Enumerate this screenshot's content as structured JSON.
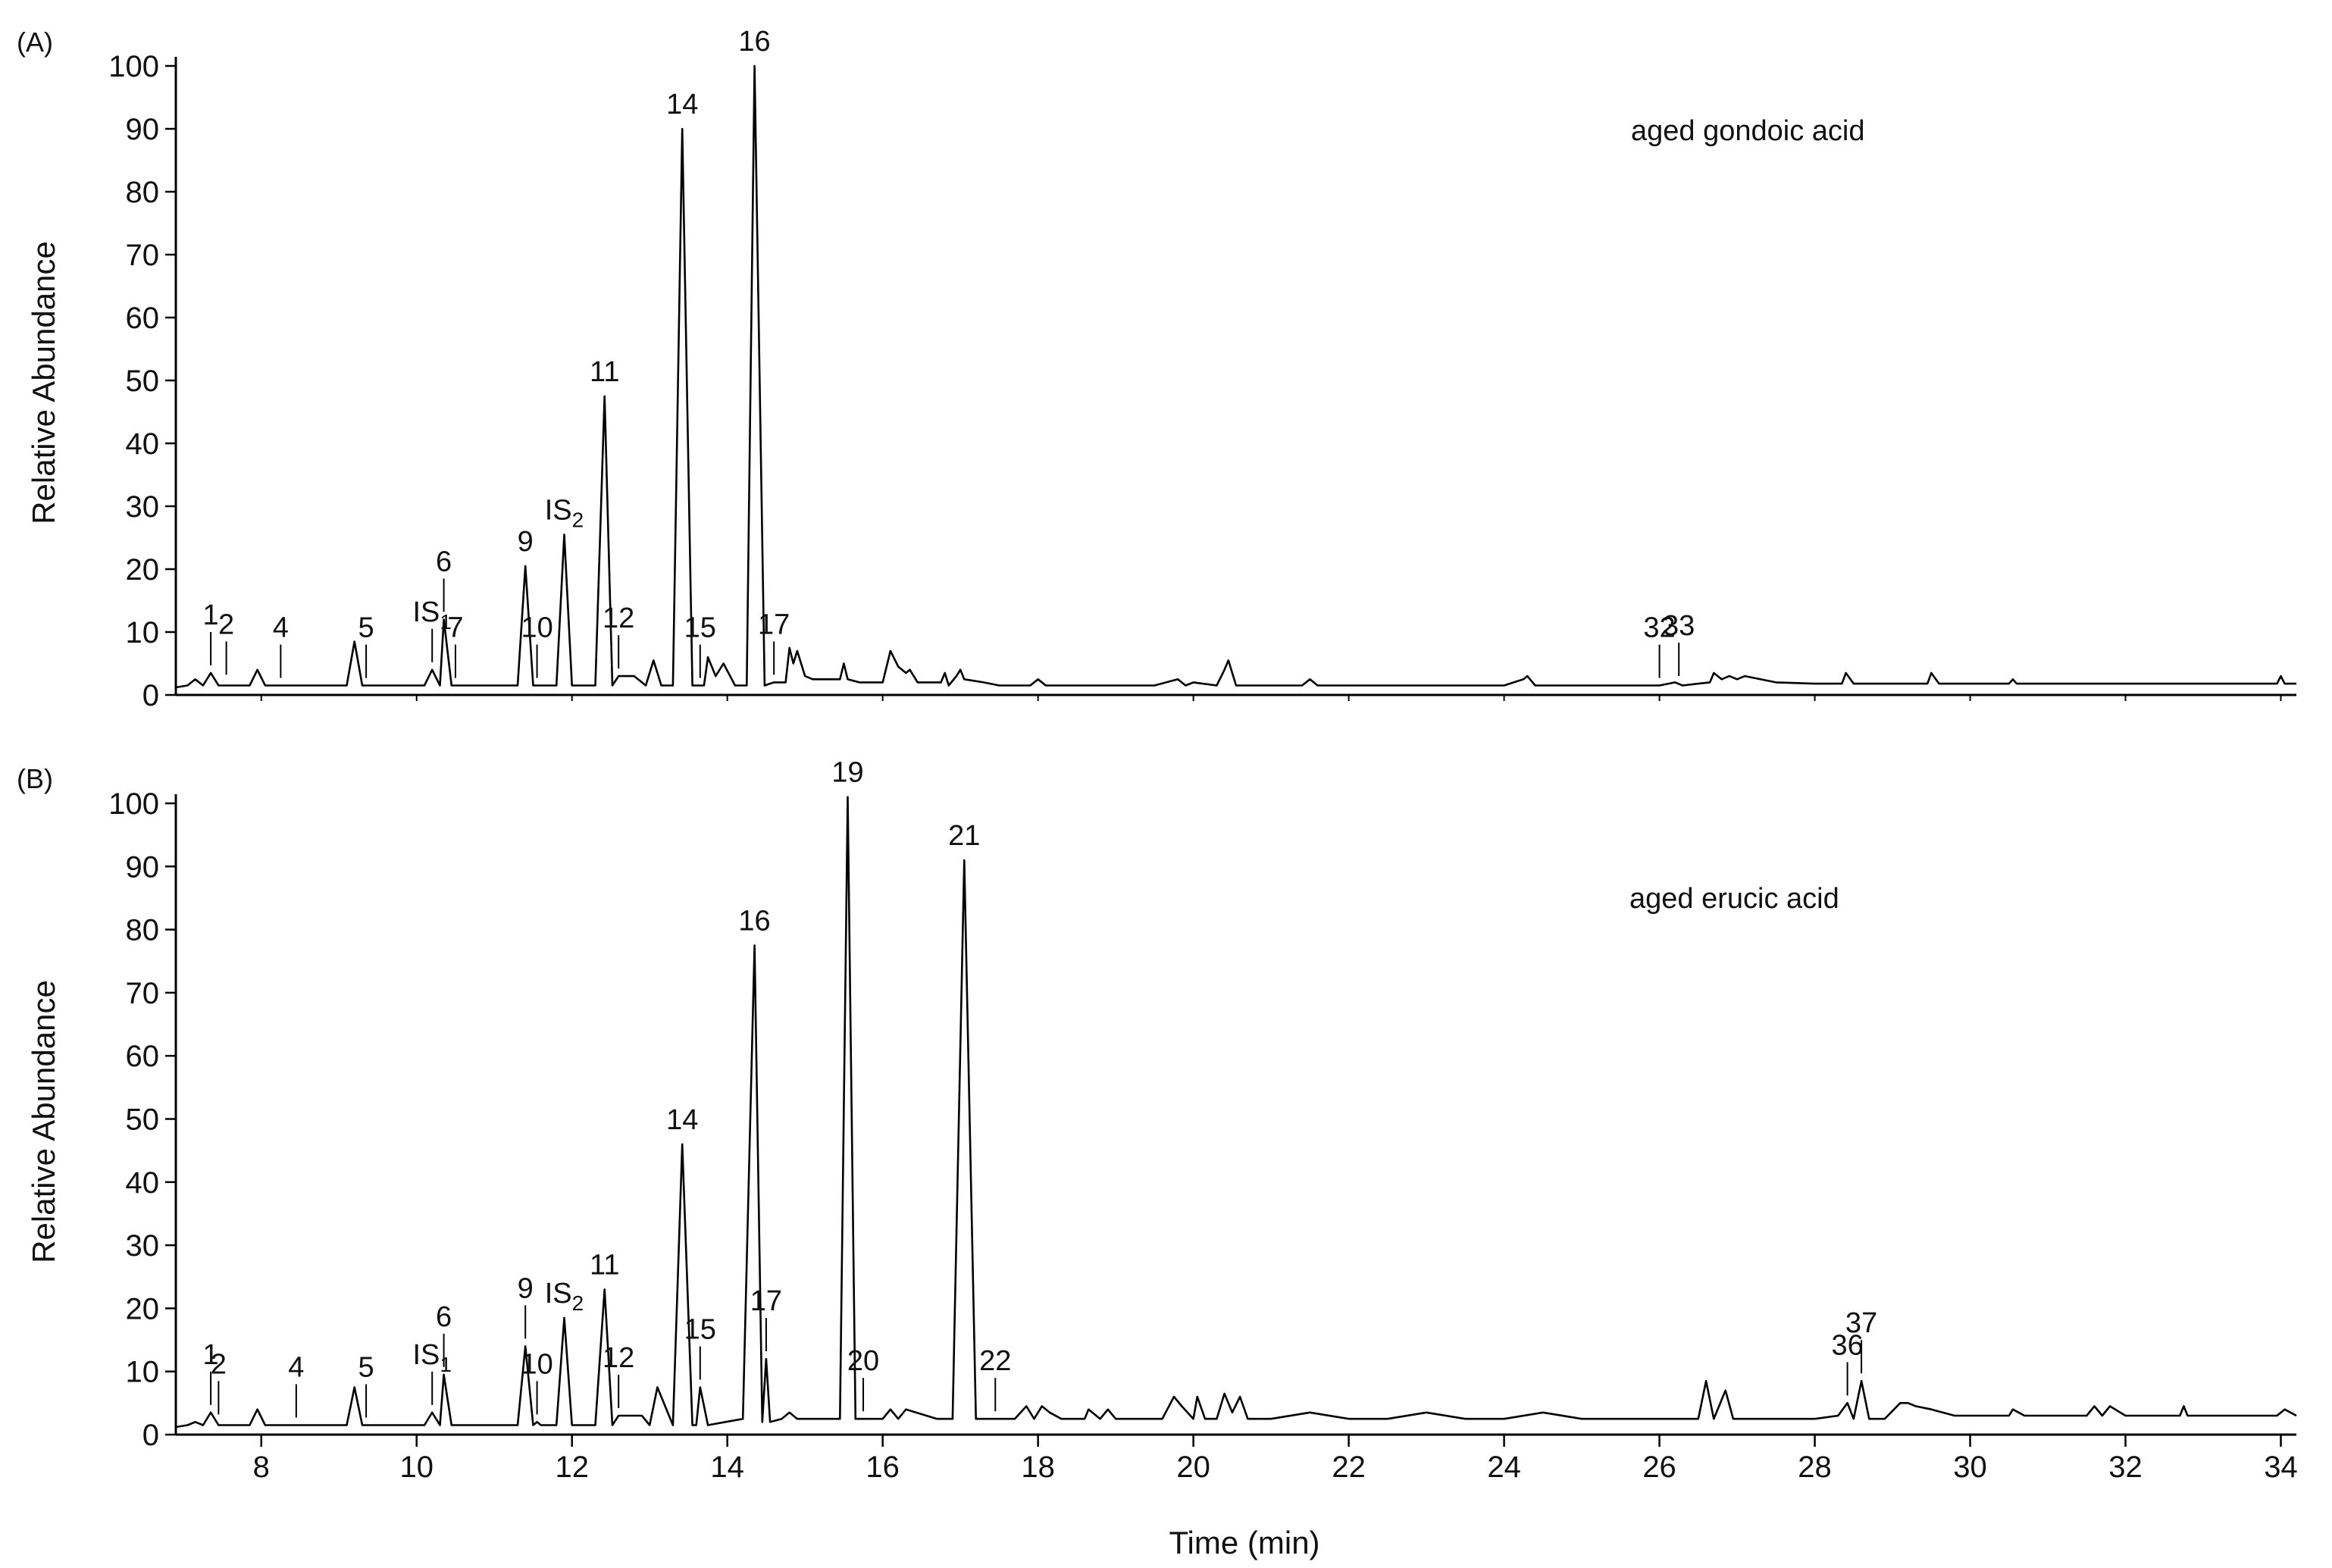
{
  "chart_data": [
    {
      "type": "line",
      "panel_label": "(A)",
      "title": "",
      "annotation": "aged gondoic acid",
      "xlabel": "",
      "ylabel": "Relative Abundance",
      "xlim": [
        6.9,
        34.2
      ],
      "ylim": [
        0,
        100
      ],
      "yticks": [
        0,
        10,
        20,
        30,
        40,
        50,
        60,
        70,
        80,
        90,
        100
      ],
      "xticks": [],
      "grid": false,
      "legend": "none",
      "color": "#000000",
      "series": [
        {
          "x": [
            6.9,
            7.05,
            7.15,
            7.25,
            7.35,
            7.45,
            7.85,
            7.95,
            8.05,
            8.5,
            9.1,
            9.2,
            9.3,
            10.1,
            10.2,
            10.3,
            10.35,
            10.45,
            10.6,
            10.9,
            11.3,
            11.4,
            11.5,
            11.8,
            11.9,
            12.0,
            12.3,
            12.42,
            12.52,
            12.6,
            12.8,
            12.95,
            13.05,
            13.15,
            13.3,
            13.42,
            13.55,
            13.7,
            13.75,
            13.85,
            13.95,
            14.1,
            14.25,
            14.35,
            14.48,
            14.6,
            14.75,
            14.8,
            14.85,
            14.9,
            15.0,
            15.1,
            15.45,
            15.5,
            15.55,
            15.7,
            16.0,
            16.1,
            16.2,
            16.3,
            16.35,
            16.45,
            16.75,
            16.8,
            16.85,
            16.95,
            17.0,
            17.05,
            17.3,
            17.5,
            17.9,
            18.0,
            18.1,
            18.3,
            19.5,
            19.8,
            19.9,
            20.0,
            20.3,
            20.4,
            20.45,
            20.55,
            21.0,
            21.4,
            21.5,
            21.6,
            22.0,
            22.6,
            23.0,
            23.5,
            24.0,
            24.25,
            24.3,
            24.4,
            25.0,
            25.5,
            26.0,
            26.2,
            26.3,
            26.5,
            26.65,
            26.7,
            26.8,
            26.9,
            27.0,
            27.1,
            27.5,
            28.0,
            28.35,
            28.4,
            28.5,
            29.0,
            29.45,
            29.5,
            29.6,
            30.0,
            30.5,
            30.55,
            30.6,
            31.0,
            31.5,
            32.0,
            32.5,
            33.0,
            33.5,
            33.95,
            34.0,
            34.05,
            34.2
          ],
          "y": [
            1.2,
            1.5,
            2.5,
            1.5,
            3.5,
            1.5,
            1.5,
            4.0,
            1.5,
            1.5,
            1.5,
            8.5,
            1.5,
            1.5,
            4.0,
            1.5,
            12.0,
            1.5,
            1.5,
            1.5,
            1.5,
            20.5,
            1.5,
            1.5,
            25.5,
            1.5,
            1.5,
            47.5,
            1.5,
            3.0,
            3.0,
            1.5,
            5.5,
            1.5,
            1.5,
            90.0,
            1.5,
            1.5,
            6.0,
            3.0,
            5.0,
            1.5,
            1.5,
            100.0,
            1.5,
            2.0,
            2.0,
            7.5,
            5.0,
            7.0,
            3.0,
            2.5,
            2.5,
            5.0,
            2.5,
            2.0,
            2.0,
            7.0,
            4.5,
            3.5,
            4.0,
            2.0,
            2.0,
            3.5,
            1.5,
            3.0,
            4.0,
            2.5,
            2.0,
            1.5,
            1.5,
            2.5,
            1.5,
            1.5,
            1.5,
            2.5,
            1.5,
            2.0,
            1.5,
            4.0,
            5.5,
            1.5,
            1.5,
            1.5,
            2.5,
            1.5,
            1.5,
            1.5,
            1.5,
            1.5,
            1.5,
            2.5,
            3.0,
            1.5,
            1.5,
            1.5,
            1.5,
            2.0,
            1.5,
            1.8,
            2.0,
            3.5,
            2.5,
            3.0,
            2.5,
            3.0,
            2.0,
            1.8,
            1.8,
            3.5,
            1.8,
            1.8,
            1.8,
            3.5,
            1.8,
            1.8,
            1.8,
            2.5,
            1.8,
            1.8,
            1.8,
            1.8,
            1.8,
            1.8,
            1.8,
            1.8,
            3.0,
            1.8,
            1.8
          ]
        }
      ],
      "peak_labels": [
        {
          "text": "1",
          "x": 7.35,
          "y": 3.5
        },
        {
          "text": "2",
          "x": 7.55,
          "y": 2.0
        },
        {
          "text": "4",
          "x": 8.25,
          "y": 1.5
        },
        {
          "text": "5",
          "x": 9.35,
          "y": 1.5
        },
        {
          "text": "IS",
          "sub": "1",
          "x": 10.2,
          "y": 4.0
        },
        {
          "text": "6",
          "x": 10.35,
          "y": 12.0
        },
        {
          "text": "7",
          "x": 10.5,
          "y": 1.5
        },
        {
          "text": "9",
          "x": 11.4,
          "y": 20.5
        },
        {
          "text": "10",
          "x": 11.55,
          "y": 1.5
        },
        {
          "text": "IS",
          "sub": "2",
          "x": 11.9,
          "y": 25.5
        },
        {
          "text": "11",
          "x": 12.42,
          "y": 47.5
        },
        {
          "text": "12",
          "x": 12.6,
          "y": 3.0
        },
        {
          "text": "14",
          "x": 13.42,
          "y": 90.0
        },
        {
          "text": "15",
          "x": 13.65,
          "y": 1.5
        },
        {
          "text": "16",
          "x": 14.35,
          "y": 100.0
        },
        {
          "text": "17",
          "x": 14.6,
          "y": 2.0
        },
        {
          "text": "32",
          "x": 26.0,
          "y": 1.5
        },
        {
          "text": "33",
          "x": 26.25,
          "y": 1.8
        }
      ]
    },
    {
      "type": "line",
      "panel_label": "(B)",
      "title": "",
      "annotation": "aged erucic acid",
      "xlabel": "Time (min)",
      "ylabel": "Relative Abundance",
      "xlim": [
        6.9,
        34.2
      ],
      "ylim": [
        0,
        100
      ],
      "yticks": [
        0,
        10,
        20,
        30,
        40,
        50,
        60,
        70,
        80,
        90,
        100
      ],
      "xticks": [
        8,
        10,
        12,
        14,
        16,
        18,
        20,
        22,
        24,
        26,
        28,
        30,
        32,
        34
      ],
      "grid": false,
      "legend": "none",
      "color": "#000000",
      "series": [
        {
          "x": [
            6.9,
            7.05,
            7.15,
            7.25,
            7.35,
            7.45,
            7.85,
            7.95,
            8.05,
            8.5,
            9.1,
            9.2,
            9.3,
            10.1,
            10.2,
            10.3,
            10.35,
            10.45,
            11.3,
            11.4,
            11.5,
            11.55,
            11.6,
            11.8,
            11.9,
            12.0,
            12.3,
            12.42,
            12.52,
            12.6,
            12.9,
            13.0,
            13.1,
            13.3,
            13.42,
            13.55,
            13.6,
            13.65,
            13.75,
            14.2,
            14.35,
            14.45,
            14.5,
            14.55,
            14.7,
            14.8,
            14.9,
            15.0,
            15.3,
            15.45,
            15.55,
            15.65,
            15.8,
            16.0,
            16.1,
            16.2,
            16.3,
            16.7,
            16.9,
            17.05,
            17.2,
            17.4,
            17.7,
            17.85,
            17.95,
            18.05,
            18.15,
            18.3,
            18.6,
            18.65,
            18.8,
            18.9,
            19.0,
            19.6,
            19.75,
            19.85,
            20.0,
            20.05,
            20.15,
            20.3,
            20.4,
            20.5,
            20.6,
            20.7,
            21.0,
            21.5,
            22.0,
            22.5,
            23.0,
            23.5,
            24.0,
            24.5,
            25.0,
            25.5,
            26.0,
            26.5,
            26.6,
            26.7,
            26.85,
            26.95,
            27.1,
            27.5,
            28.0,
            28.3,
            28.42,
            28.5,
            28.6,
            28.7,
            28.9,
            29.1,
            29.2,
            29.3,
            29.5,
            29.8,
            30.5,
            30.55,
            30.7,
            31.5,
            31.6,
            31.7,
            31.8,
            32.0,
            32.7,
            32.75,
            32.8,
            33.5,
            33.95,
            34.05,
            34.2
          ],
          "y": [
            1.2,
            1.5,
            2.0,
            1.5,
            3.5,
            1.5,
            1.5,
            4.0,
            1.5,
            1.5,
            1.5,
            7.5,
            1.5,
            1.5,
            3.5,
            1.5,
            9.5,
            1.5,
            1.5,
            14.0,
            1.5,
            2.0,
            1.5,
            1.5,
            18.5,
            1.5,
            1.5,
            23.0,
            1.5,
            3.0,
            3.0,
            1.5,
            7.5,
            1.5,
            46.0,
            1.5,
            1.5,
            7.5,
            1.5,
            2.5,
            77.5,
            2.0,
            12.0,
            2.0,
            2.5,
            3.5,
            2.5,
            2.5,
            2.5,
            2.5,
            101.0,
            2.5,
            2.5,
            2.5,
            4.0,
            2.5,
            4.0,
            2.5,
            2.5,
            91.0,
            2.5,
            2.5,
            2.5,
            4.5,
            2.5,
            4.5,
            3.5,
            2.5,
            2.5,
            4.0,
            2.5,
            4.0,
            2.5,
            2.5,
            6.0,
            4.5,
            2.5,
            6.0,
            2.5,
            2.5,
            6.5,
            3.5,
            6.0,
            2.5,
            2.5,
            3.5,
            2.5,
            2.5,
            3.5,
            2.5,
            2.5,
            3.5,
            2.5,
            2.5,
            2.5,
            2.5,
            8.5,
            2.5,
            7.0,
            2.5,
            2.5,
            2.5,
            2.5,
            3.0,
            5.0,
            2.5,
            8.5,
            2.5,
            2.5,
            5.0,
            5.0,
            4.5,
            4.0,
            3.0,
            3.0,
            4.0,
            3.0,
            3.0,
            4.5,
            3.0,
            4.5,
            3.0,
            3.0,
            4.5,
            3.0,
            3.0,
            3.0,
            4.0,
            3.0
          ]
        }
      ],
      "peak_labels": [
        {
          "text": "1",
          "x": 7.35,
          "y": 3.5
        },
        {
          "text": "2",
          "x": 7.45,
          "y": 2.0
        },
        {
          "text": "4",
          "x": 8.45,
          "y": 1.5
        },
        {
          "text": "5",
          "x": 9.35,
          "y": 1.5
        },
        {
          "text": "IS",
          "sub": "1",
          "x": 10.2,
          "y": 3.5
        },
        {
          "text": "6",
          "x": 10.35,
          "y": 9.5
        },
        {
          "text": "9",
          "x": 11.4,
          "y": 14.0
        },
        {
          "text": "10",
          "x": 11.55,
          "y": 2.0
        },
        {
          "text": "IS",
          "sub": "2",
          "x": 11.9,
          "y": 18.5
        },
        {
          "text": "11",
          "x": 12.42,
          "y": 23.0
        },
        {
          "text": "12",
          "x": 12.6,
          "y": 3.0
        },
        {
          "text": "14",
          "x": 13.42,
          "y": 46.0
        },
        {
          "text": "15",
          "x": 13.65,
          "y": 7.5
        },
        {
          "text": "16",
          "x": 14.35,
          "y": 77.5
        },
        {
          "text": "17",
          "x": 14.5,
          "y": 12.0
        },
        {
          "text": "19",
          "x": 15.55,
          "y": 101.0
        },
        {
          "text": "20",
          "x": 15.75,
          "y": 2.5
        },
        {
          "text": "21",
          "x": 17.05,
          "y": 91.0
        },
        {
          "text": "22",
          "x": 17.45,
          "y": 2.5
        },
        {
          "text": "36",
          "x": 28.42,
          "y": 5.0
        },
        {
          "text": "37",
          "x": 28.6,
          "y": 8.5
        }
      ]
    }
  ]
}
